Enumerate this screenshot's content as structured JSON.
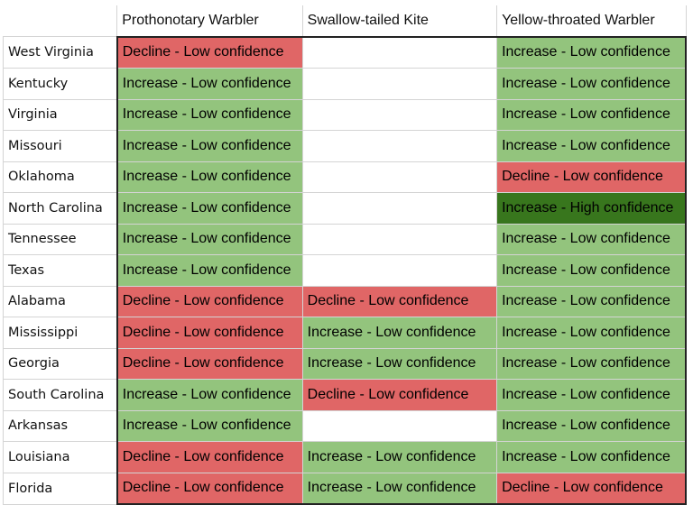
{
  "columns": [
    "Prothonotary Warbler",
    "Swallow-tailed Kite",
    "Yellow-throated Warbler"
  ],
  "legend_colors": {
    "Decline - Low confidence": "#e06666",
    "Increase - Low confidence": "#93c47d",
    "Increase - High confidence": "#38761d"
  },
  "rows": [
    {
      "state": "West Virginia",
      "cells": [
        "Decline - Low confidence",
        "",
        "Increase - Low confidence"
      ]
    },
    {
      "state": "Kentucky",
      "cells": [
        "Increase - Low confidence",
        "",
        "Increase - Low confidence"
      ]
    },
    {
      "state": "Virginia",
      "cells": [
        "Increase - Low confidence",
        "",
        "Increase - Low confidence"
      ]
    },
    {
      "state": "Missouri",
      "cells": [
        "Increase - Low confidence",
        "",
        "Increase - Low confidence"
      ]
    },
    {
      "state": "Oklahoma",
      "cells": [
        "Increase - Low confidence",
        "",
        "Decline - Low confidence"
      ]
    },
    {
      "state": "North Carolina",
      "cells": [
        "Increase - Low confidence",
        "",
        "Increase - High confidence"
      ]
    },
    {
      "state": "Tennessee",
      "cells": [
        "Increase - Low confidence",
        "",
        "Increase - Low confidence"
      ]
    },
    {
      "state": "Texas",
      "cells": [
        "Increase - Low confidence",
        "",
        "Increase - Low confidence"
      ]
    },
    {
      "state": "Alabama",
      "cells": [
        "Decline - Low confidence",
        "Decline - Low confidence",
        "Increase - Low confidence"
      ]
    },
    {
      "state": "Mississippi",
      "cells": [
        "Decline - Low confidence",
        "Increase - Low confidence",
        "Increase - Low confidence"
      ]
    },
    {
      "state": "Georgia",
      "cells": [
        "Decline - Low confidence",
        "Increase - Low confidence",
        "Increase - Low confidence"
      ]
    },
    {
      "state": "South Carolina",
      "cells": [
        "Increase - Low confidence",
        "Decline - Low confidence",
        "Increase - Low confidence"
      ]
    },
    {
      "state": "Arkansas",
      "cells": [
        "Increase - Low confidence",
        "",
        "Increase - Low confidence"
      ]
    },
    {
      "state": "Louisiana",
      "cells": [
        "Decline - Low confidence",
        "Increase - Low confidence",
        "Increase - Low confidence"
      ]
    },
    {
      "state": "Florida",
      "cells": [
        "Decline - Low confidence",
        "Increase - Low confidence",
        "Decline - Low confidence"
      ]
    }
  ]
}
